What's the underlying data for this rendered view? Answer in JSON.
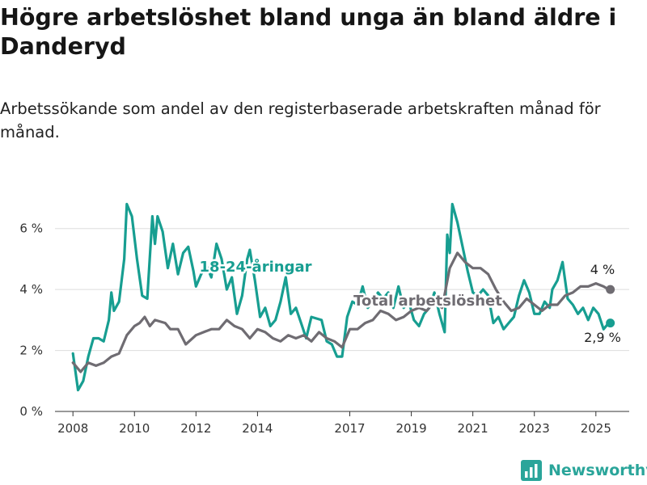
{
  "header": {
    "title": "Högre arbetslöshet bland unga än bland äldre i Danderyd",
    "subtitle": "Arbetssökande som andel av den registerbaserade arbetskraften månad för månad."
  },
  "brand": {
    "name": "Newsworthy",
    "icon": "bar-chart-logo-icon",
    "color": "#2aa59a"
  },
  "chart_data": {
    "type": "line",
    "title": "Högre arbetslöshet bland unga än bland äldre i Danderyd",
    "subtitle": "Arbetssökande som andel av den registerbaserade arbetskraften månad för månad.",
    "x_ticks": [
      "2008",
      "2010",
      "2012",
      "2014",
      "2017",
      "2019",
      "2021",
      "2023",
      "2025"
    ],
    "y_ticks": [
      0,
      2,
      4,
      6
    ],
    "y_tick_labels": [
      "0 %",
      "2 %",
      "4 %",
      "6 %"
    ],
    "ylim": [
      0,
      7
    ],
    "xlim": [
      "2007-06",
      "2026-02"
    ],
    "grid": true,
    "legend": "inline labels",
    "series": [
      {
        "name": "18-24-åringar",
        "color": "#179e91",
        "end_label": "2,9 %",
        "points": [
          [
            "2008-01",
            1.9
          ],
          [
            "2008-03",
            0.7
          ],
          [
            "2008-05",
            1.0
          ],
          [
            "2008-07",
            1.8
          ],
          [
            "2008-09",
            2.4
          ],
          [
            "2008-11",
            2.4
          ],
          [
            "2009-01",
            2.3
          ],
          [
            "2009-03",
            3.0
          ],
          [
            "2009-04",
            3.9
          ],
          [
            "2009-05",
            3.3
          ],
          [
            "2009-07",
            3.6
          ],
          [
            "2009-09",
            5.0
          ],
          [
            "2009-10",
            6.8
          ],
          [
            "2009-12",
            6.4
          ],
          [
            "2010-02",
            5.0
          ],
          [
            "2010-04",
            3.8
          ],
          [
            "2010-06",
            3.7
          ],
          [
            "2010-08",
            6.4
          ],
          [
            "2010-09",
            5.5
          ],
          [
            "2010-10",
            6.4
          ],
          [
            "2010-12",
            5.9
          ],
          [
            "2011-02",
            4.7
          ],
          [
            "2011-04",
            5.5
          ],
          [
            "2011-06",
            4.5
          ],
          [
            "2011-08",
            5.2
          ],
          [
            "2011-10",
            5.4
          ],
          [
            "2011-12",
            4.6
          ],
          [
            "2012-01",
            4.1
          ],
          [
            "2012-03",
            4.5
          ],
          [
            "2012-05",
            4.8
          ],
          [
            "2012-07",
            4.4
          ],
          [
            "2012-09",
            5.5
          ],
          [
            "2012-11",
            5.0
          ],
          [
            "2013-01",
            4.0
          ],
          [
            "2013-03",
            4.4
          ],
          [
            "2013-05",
            3.2
          ],
          [
            "2013-07",
            3.8
          ],
          [
            "2013-09",
            5.0
          ],
          [
            "2013-10",
            5.3
          ],
          [
            "2013-12",
            4.3
          ],
          [
            "2014-02",
            3.1
          ],
          [
            "2014-04",
            3.4
          ],
          [
            "2014-06",
            2.8
          ],
          [
            "2014-08",
            3.0
          ],
          [
            "2014-10",
            3.6
          ],
          [
            "2014-12",
            4.4
          ],
          [
            "2015-02",
            3.2
          ],
          [
            "2015-04",
            3.4
          ],
          [
            "2015-06",
            2.9
          ],
          [
            "2015-08",
            2.4
          ],
          [
            "2015-10",
            3.1
          ],
          [
            "2016-02",
            3.0
          ],
          [
            "2016-04",
            2.3
          ],
          [
            "2016-06",
            2.2
          ],
          [
            "2016-08",
            1.8
          ],
          [
            "2016-10",
            1.8
          ],
          [
            "2016-12",
            3.1
          ],
          [
            "2017-02",
            3.6
          ],
          [
            "2017-04",
            3.5
          ],
          [
            "2017-06",
            4.1
          ],
          [
            "2017-08",
            3.4
          ],
          [
            "2017-10",
            3.6
          ],
          [
            "2017-12",
            3.9
          ],
          [
            "2018-02",
            3.7
          ],
          [
            "2018-04",
            3.9
          ],
          [
            "2018-06",
            3.4
          ],
          [
            "2018-08",
            4.1
          ],
          [
            "2018-10",
            3.4
          ],
          [
            "2018-12",
            3.6
          ],
          [
            "2019-02",
            3.0
          ],
          [
            "2019-04",
            2.8
          ],
          [
            "2019-06",
            3.2
          ],
          [
            "2019-08",
            3.4
          ],
          [
            "2019-10",
            3.9
          ],
          [
            "2019-12",
            3.2
          ],
          [
            "2020-02",
            2.6
          ],
          [
            "2020-03",
            5.8
          ],
          [
            "2020-04",
            5.2
          ],
          [
            "2020-05",
            6.8
          ],
          [
            "2020-07",
            6.2
          ],
          [
            "2020-09",
            5.4
          ],
          [
            "2020-11",
            4.6
          ],
          [
            "2021-01",
            3.9
          ],
          [
            "2021-03",
            3.8
          ],
          [
            "2021-05",
            4.0
          ],
          [
            "2021-07",
            3.8
          ],
          [
            "2021-09",
            2.9
          ],
          [
            "2021-11",
            3.1
          ],
          [
            "2022-01",
            2.7
          ],
          [
            "2022-03",
            2.9
          ],
          [
            "2022-05",
            3.1
          ],
          [
            "2022-07",
            3.8
          ],
          [
            "2022-09",
            4.3
          ],
          [
            "2022-11",
            3.9
          ],
          [
            "2023-01",
            3.2
          ],
          [
            "2023-03",
            3.2
          ],
          [
            "2023-05",
            3.6
          ],
          [
            "2023-07",
            3.4
          ],
          [
            "2023-08",
            4.0
          ],
          [
            "2023-10",
            4.3
          ],
          [
            "2023-12",
            4.9
          ],
          [
            "2024-02",
            3.7
          ],
          [
            "2024-04",
            3.5
          ],
          [
            "2024-06",
            3.2
          ],
          [
            "2024-08",
            3.4
          ],
          [
            "2024-10",
            3.0
          ],
          [
            "2024-12",
            3.4
          ],
          [
            "2025-02",
            3.2
          ],
          [
            "2025-04",
            2.7
          ],
          [
            "2025-06",
            2.9
          ]
        ]
      },
      {
        "name": "Total arbetslöshet",
        "color": "#6f6c72",
        "end_label": "4 %",
        "points": [
          [
            "2008-01",
            1.6
          ],
          [
            "2008-04",
            1.3
          ],
          [
            "2008-07",
            1.6
          ],
          [
            "2008-10",
            1.5
          ],
          [
            "2009-01",
            1.6
          ],
          [
            "2009-04",
            1.8
          ],
          [
            "2009-07",
            1.9
          ],
          [
            "2009-10",
            2.5
          ],
          [
            "2010-01",
            2.8
          ],
          [
            "2010-03",
            2.9
          ],
          [
            "2010-05",
            3.1
          ],
          [
            "2010-07",
            2.8
          ],
          [
            "2010-09",
            3.0
          ],
          [
            "2011-01",
            2.9
          ],
          [
            "2011-03",
            2.7
          ],
          [
            "2011-06",
            2.7
          ],
          [
            "2011-09",
            2.2
          ],
          [
            "2012-01",
            2.5
          ],
          [
            "2012-04",
            2.6
          ],
          [
            "2012-07",
            2.7
          ],
          [
            "2012-10",
            2.7
          ],
          [
            "2013-01",
            3.0
          ],
          [
            "2013-04",
            2.8
          ],
          [
            "2013-07",
            2.7
          ],
          [
            "2013-10",
            2.4
          ],
          [
            "2014-01",
            2.7
          ],
          [
            "2014-04",
            2.6
          ],
          [
            "2014-07",
            2.4
          ],
          [
            "2014-10",
            2.3
          ],
          [
            "2015-01",
            2.5
          ],
          [
            "2015-04",
            2.4
          ],
          [
            "2015-07",
            2.5
          ],
          [
            "2015-10",
            2.3
          ],
          [
            "2016-01",
            2.6
          ],
          [
            "2016-04",
            2.4
          ],
          [
            "2016-07",
            2.3
          ],
          [
            "2016-10",
            2.1
          ],
          [
            "2017-01",
            2.7
          ],
          [
            "2017-04",
            2.7
          ],
          [
            "2017-07",
            2.9
          ],
          [
            "2017-10",
            3.0
          ],
          [
            "2018-01",
            3.3
          ],
          [
            "2018-04",
            3.2
          ],
          [
            "2018-07",
            3.0
          ],
          [
            "2018-10",
            3.1
          ],
          [
            "2019-01",
            3.3
          ],
          [
            "2019-04",
            3.4
          ],
          [
            "2019-07",
            3.3
          ],
          [
            "2019-10",
            3.6
          ],
          [
            "2020-01",
            3.4
          ],
          [
            "2020-04",
            4.7
          ],
          [
            "2020-07",
            5.2
          ],
          [
            "2020-10",
            4.9
          ],
          [
            "2021-01",
            4.7
          ],
          [
            "2021-04",
            4.7
          ],
          [
            "2021-07",
            4.5
          ],
          [
            "2021-10",
            4.0
          ],
          [
            "2022-01",
            3.6
          ],
          [
            "2022-04",
            3.3
          ],
          [
            "2022-07",
            3.4
          ],
          [
            "2022-10",
            3.7
          ],
          [
            "2023-01",
            3.5
          ],
          [
            "2023-04",
            3.3
          ],
          [
            "2023-07",
            3.5
          ],
          [
            "2023-10",
            3.5
          ],
          [
            "2024-01",
            3.8
          ],
          [
            "2024-04",
            3.9
          ],
          [
            "2024-07",
            4.1
          ],
          [
            "2024-10",
            4.1
          ],
          [
            "2025-01",
            4.2
          ],
          [
            "2025-04",
            4.1
          ],
          [
            "2025-06",
            4.0
          ]
        ]
      }
    ]
  }
}
